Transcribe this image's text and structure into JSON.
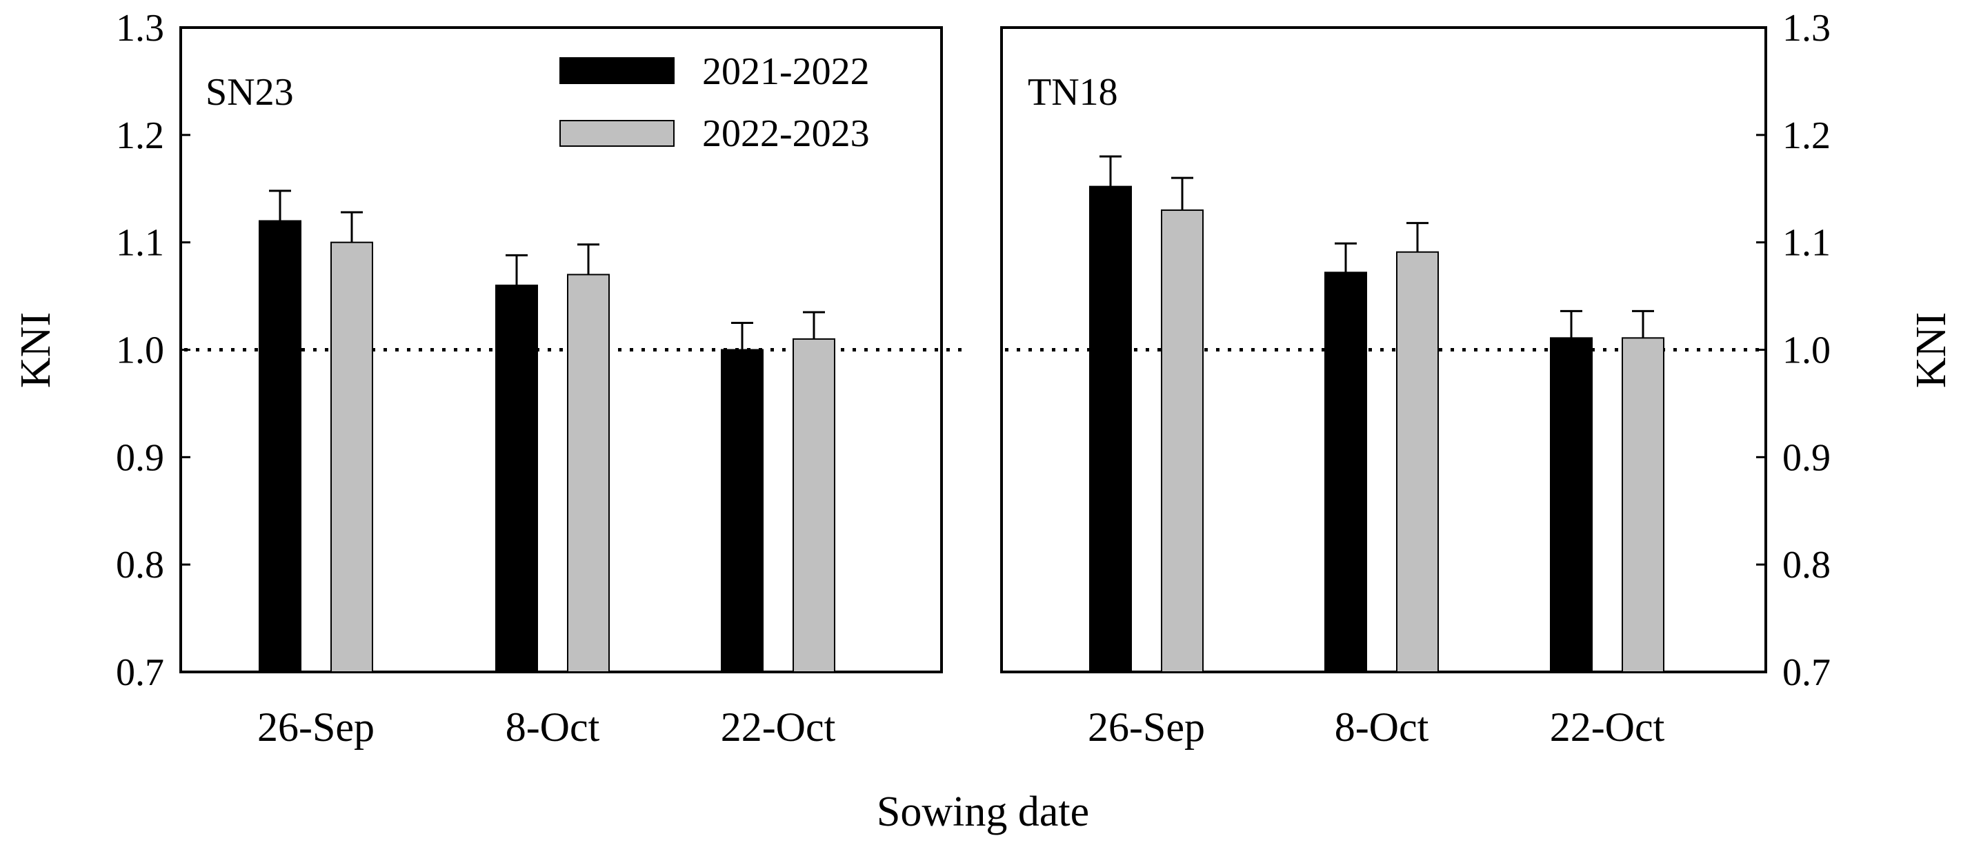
{
  "chart_data": {
    "type": "bar",
    "xlabel": "Sowing date",
    "ylabel": "KNI",
    "ylim": [
      0.7,
      1.3
    ],
    "yticks": [
      "0.7",
      "0.8",
      "0.9",
      "1.0",
      "1.1",
      "1.2",
      "1.3"
    ],
    "reference_line": 1.0,
    "categories": [
      "26-Sep",
      "8-Oct",
      "22-Oct"
    ],
    "legend": [
      {
        "name": "2021-2022",
        "color": "#000000"
      },
      {
        "name": "2022-2023",
        "color": "#c0c0c0"
      }
    ],
    "panels": [
      {
        "label": "SN23",
        "y_axis_side": "left",
        "series": [
          {
            "name": "2021-2022",
            "values": [
              1.12,
              1.06,
              1.0
            ],
            "errors": [
              0.028,
              0.028,
              0.025
            ]
          },
          {
            "name": "2022-2023",
            "values": [
              1.1,
              1.07,
              1.01
            ],
            "errors": [
              0.028,
              0.028,
              0.025
            ]
          }
        ]
      },
      {
        "label": "TN18",
        "y_axis_side": "right",
        "series": [
          {
            "name": "2021-2022",
            "values": [
              1.152,
              1.072,
              1.011
            ],
            "errors": [
              0.028,
              0.027,
              0.025
            ]
          },
          {
            "name": "2022-2023",
            "values": [
              1.13,
              1.091,
              1.011
            ],
            "errors": [
              0.03,
              0.027,
              0.025
            ]
          }
        ]
      }
    ]
  }
}
